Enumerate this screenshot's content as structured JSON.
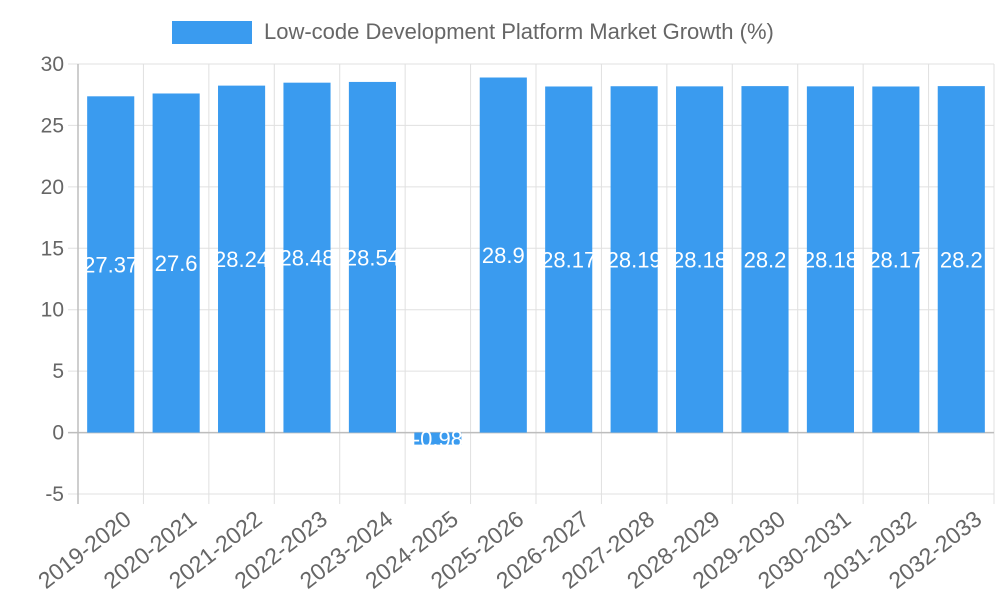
{
  "chart_data": {
    "type": "bar",
    "title": "",
    "legend": {
      "label": "Low-code Development Platform Market Growth (%)",
      "placement": "top"
    },
    "categories": [
      "2019-2020",
      "2020-2021",
      "2021-2022",
      "2022-2023",
      "2023-2024",
      "2024-2025",
      "2025-2026",
      "2026-2027",
      "2027-2028",
      "2028-2029",
      "2029-2030",
      "2030-2031",
      "2031-2032",
      "2032-2033"
    ],
    "series": [
      {
        "name": "Low-code Development Platform Market Growth (%)",
        "values": [
          27.37,
          27.6,
          28.24,
          28.48,
          28.54,
          -0.98,
          28.9,
          28.17,
          28.19,
          28.18,
          28.2,
          28.18,
          28.17,
          28.2
        ],
        "labels": [
          "27.37",
          "27.6",
          "28.24",
          "28.48",
          "28.54",
          "-0.98",
          "28.9",
          "28.17",
          "28.19",
          "28.18",
          "28.2",
          "28.18",
          "28.17",
          "28.2"
        ],
        "color": "#3a9bef"
      }
    ],
    "yticks": [
      -5,
      0,
      5,
      10,
      15,
      20,
      25,
      30
    ],
    "ylim": [
      -5,
      30
    ],
    "xlabel": "",
    "ylabel": "",
    "grid": true
  }
}
